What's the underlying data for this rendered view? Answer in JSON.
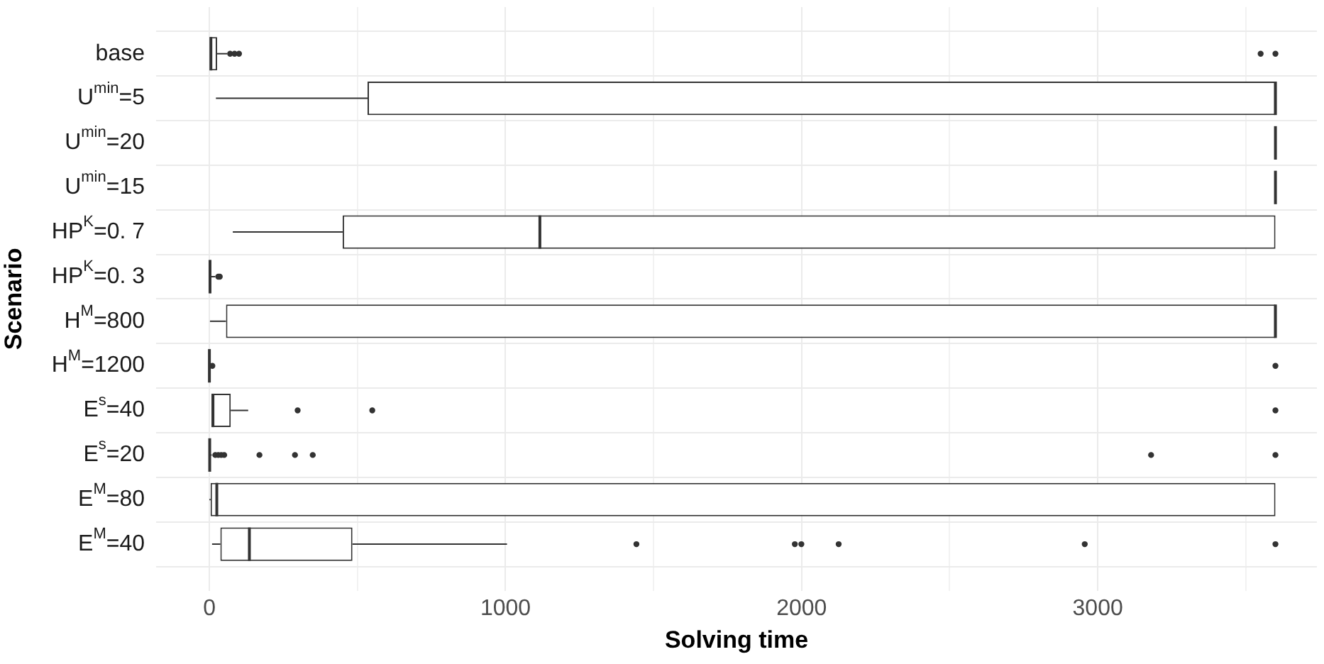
{
  "chart_data": {
    "type": "box",
    "orientation": "horizontal",
    "xlabel": "Solving time",
    "ylabel": "Scenario",
    "color": "#333333",
    "grid": true,
    "categories": [
      "base",
      "U$^{min}$=5",
      "U$^{min}$=20",
      "U$^{min}$=15",
      "HP$^{K}$=0. 7",
      "HP$^{K}$=0. 3",
      "H$^{M}$=800",
      "H$^{M}$=1200",
      "E$^{s}$=40",
      "E$^{s}$=20",
      "E$^{M}$=80",
      "E$^{M}$=40"
    ],
    "boxes": [
      {
        "low": 0,
        "q1": 0,
        "median": 5,
        "q3": 26,
        "high": 60,
        "outliers": [
          70,
          85,
          100,
          3550,
          3600
        ]
      },
      {
        "low": 22,
        "q1": 534,
        "median": 3600,
        "q3": 3600,
        "high": 3600
      },
      {
        "low": 3600,
        "q1": 3600,
        "median": 3600,
        "q3": 3600,
        "high": 3600
      },
      {
        "low": 3600,
        "q1": 3600,
        "median": 3600,
        "q3": 3600,
        "high": 3600
      },
      {
        "low": 79,
        "q1": 450,
        "median": 1116,
        "q3": 3600,
        "high": 3600
      },
      {
        "low": 0,
        "q1": 0,
        "median": 2,
        "q3": 5,
        "high": 20,
        "outliers": [
          30,
          35
        ]
      },
      {
        "low": 2,
        "q1": 56,
        "median": 3600,
        "q3": 3600,
        "high": 3600
      },
      {
        "low": 0,
        "q1": 0,
        "median": 0,
        "q3": 1,
        "high": 2,
        "outliers": [
          10,
          3600
        ]
      },
      {
        "low": 7,
        "q1": 7,
        "median": 12,
        "q3": 72,
        "high": 131,
        "outliers": [
          298,
          550,
          3600
        ]
      },
      {
        "low": 0,
        "q1": 0,
        "median": 1,
        "q3": 3,
        "high": 8,
        "outliers": [
          20,
          30,
          40,
          50,
          169,
          289,
          349,
          3180,
          3600
        ]
      },
      {
        "low": 0,
        "q1": 4,
        "median": 25,
        "q3": 3600,
        "high": 3600
      },
      {
        "low": 9,
        "q1": 37,
        "median": 135,
        "q3": 483,
        "high": 1005,
        "outliers": [
          1442,
          1977,
          1999,
          2125,
          2956,
          3600
        ]
      }
    ],
    "xlim": [
      -180,
      3740
    ],
    "xticks": [
      0,
      {
        "value": 500,
        "label": null
      },
      1000,
      {
        "value": 1500,
        "label": null
      },
      2000,
      {
        "value": 2500,
        "label": null
      },
      3000,
      {
        "value": 3500,
        "label": null
      }
    ]
  }
}
